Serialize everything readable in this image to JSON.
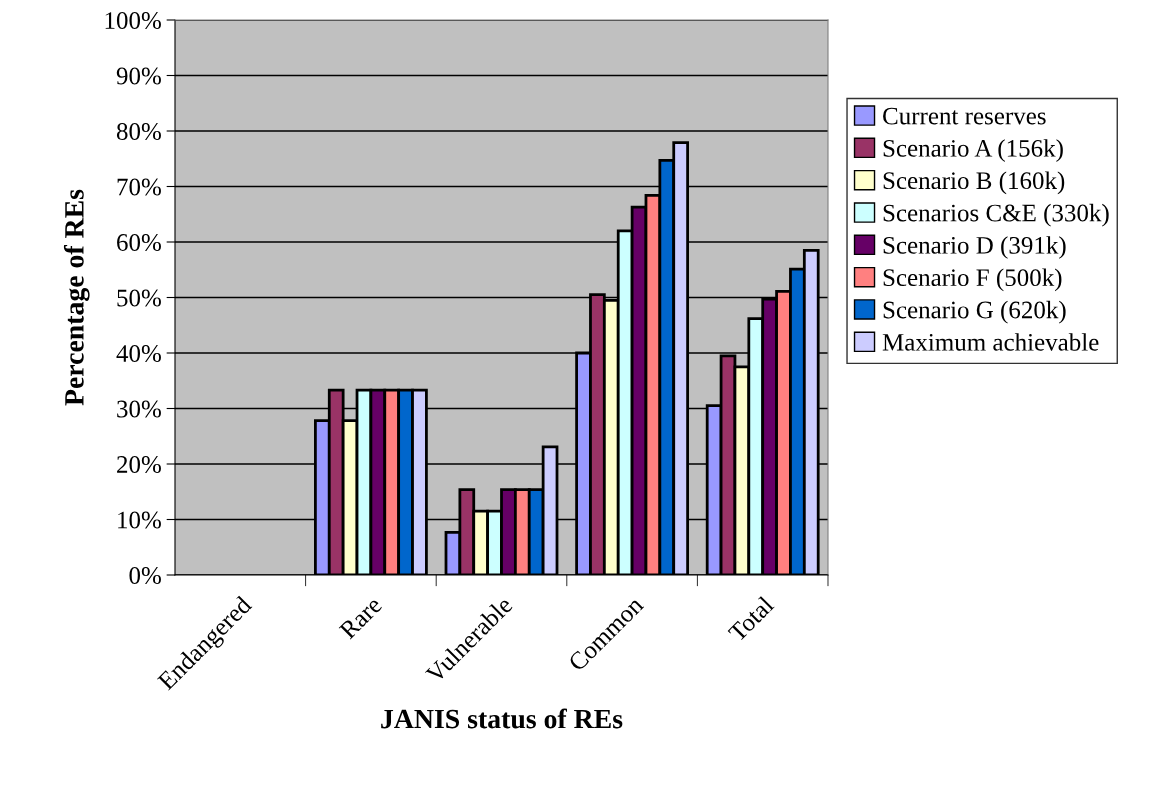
{
  "chart_data": {
    "type": "bar",
    "xlabel": "JANIS status of REs",
    "ylabel": "Percentage of REs",
    "categories": [
      "Endangered",
      "Rare",
      "Vulnerable",
      "Common",
      "Total"
    ],
    "ylim": [
      0,
      100
    ],
    "yticks": [
      {
        "value": 0,
        "label": "0%"
      },
      {
        "value": 10,
        "label": "10%"
      },
      {
        "value": 20,
        "label": "20%"
      },
      {
        "value": 30,
        "label": "30%"
      },
      {
        "value": 40,
        "label": "40%"
      },
      {
        "value": 50,
        "label": "50%"
      },
      {
        "value": 60,
        "label": "60%"
      },
      {
        "value": 70,
        "label": "70%"
      },
      {
        "value": 80,
        "label": "80%"
      },
      {
        "value": 90,
        "label": "90%"
      },
      {
        "value": 100,
        "label": "100%"
      }
    ],
    "grid": "y",
    "legend": "right",
    "series": [
      {
        "name": "Current reserves",
        "color": "#9999ff",
        "values": [
          0,
          27.8,
          7.7,
          40,
          30.5
        ]
      },
      {
        "name": "Scenario A (156k)",
        "color": "#993366",
        "values": [
          0,
          33.3,
          15.4,
          50.5,
          39.5
        ]
      },
      {
        "name": "Scenario B (160k)",
        "color": "#ffffcc",
        "values": [
          0,
          27.8,
          11.5,
          49.5,
          37.5
        ]
      },
      {
        "name": "Scenarios C&E (330k)",
        "color": "#ccffff",
        "values": [
          0,
          33.3,
          11.5,
          62,
          46.2
        ]
      },
      {
        "name": "Scenario D (391k)",
        "color": "#660066",
        "values": [
          0,
          33.3,
          15.4,
          66.3,
          49.7
        ]
      },
      {
        "name": "Scenario F (500k)",
        "color": "#ff8080",
        "values": [
          0,
          33.3,
          15.4,
          68.4,
          51.1
        ]
      },
      {
        "name": "Scenario G (620k)",
        "color": "#0066cc",
        "values": [
          0,
          33.3,
          15.4,
          74.7,
          55.1
        ]
      },
      {
        "name": "Maximum achievable",
        "color": "#ccccff",
        "values": [
          0,
          33.3,
          23.1,
          77.9,
          58.5
        ]
      }
    ]
  }
}
